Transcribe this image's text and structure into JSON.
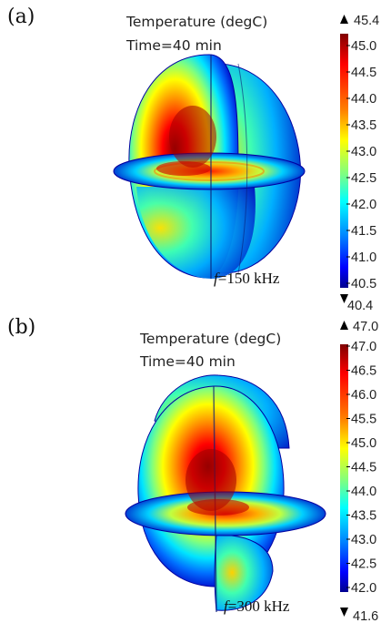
{
  "panels": [
    {
      "label": "(a)",
      "quantity": "Temperature (degC)",
      "time": "Time=40 min",
      "freq_symbol": "f",
      "freq_value": "=150 kHz",
      "colorbar": {
        "max_label": "45.4",
        "min_label": "40.4",
        "ticks": [
          "45.0",
          "44.5",
          "44.0",
          "43.5",
          "43.0",
          "42.5",
          "42.0",
          "41.5",
          "41.0",
          "40.5"
        ]
      }
    },
    {
      "label": "(b)",
      "quantity": "Temperature (degC)",
      "time": "Time=40 min",
      "freq_symbol": "f",
      "freq_value": "=300 kHz",
      "colorbar": {
        "max_label": "47.0",
        "min_label": "41.6",
        "ticks": [
          "47.0",
          "46.5",
          "46.0",
          "45.5",
          "45.0",
          "44.5",
          "44.0",
          "43.5",
          "43.0",
          "42.5",
          "42.0"
        ]
      }
    }
  ],
  "colors": {
    "jet": [
      "#00008f",
      "#0000ff",
      "#0080ff",
      "#00ffff",
      "#80ff80",
      "#ffff00",
      "#ff8000",
      "#ff0000",
      "#800000"
    ]
  }
}
